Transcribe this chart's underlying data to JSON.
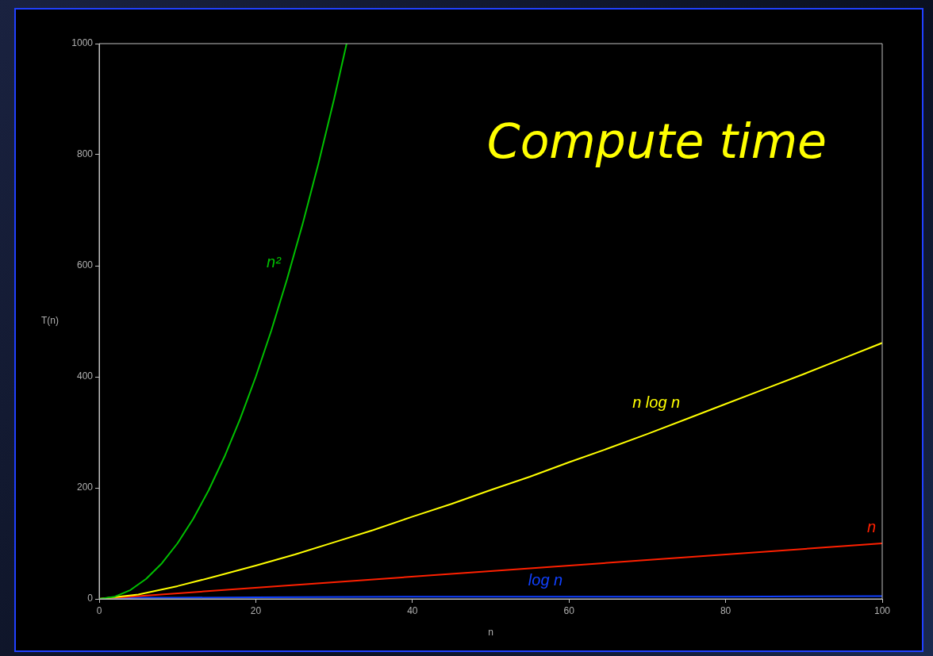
{
  "chart_data": {
    "type": "line",
    "title": "Compute time",
    "xlabel": "n",
    "ylabel": "T(n)",
    "xlim": [
      0,
      100
    ],
    "ylim": [
      0,
      1000
    ],
    "xticks": [
      0,
      20,
      40,
      60,
      80,
      100
    ],
    "yticks": [
      0,
      200,
      400,
      600,
      800,
      1000
    ],
    "grid": false,
    "legend": false,
    "marker": "none",
    "line_style": "solid",
    "series": [
      {
        "name": "n²",
        "color": "#00c000",
        "x": [
          0,
          2,
          4,
          6,
          8,
          10,
          12,
          14,
          16,
          18,
          20,
          22,
          24,
          26,
          28,
          30,
          31.6
        ],
        "values": [
          0,
          4,
          16,
          36,
          64,
          100,
          144,
          196,
          256,
          324,
          400,
          484,
          576,
          676,
          784,
          900,
          1000
        ]
      },
      {
        "name": "n log n",
        "color": "#ffff00",
        "x": [
          0,
          5,
          10,
          15,
          20,
          25,
          30,
          35,
          40,
          45,
          50,
          55,
          60,
          65,
          70,
          75,
          80,
          85,
          90,
          95,
          100
        ],
        "values": [
          0,
          8,
          23,
          41,
          60,
          80,
          102,
          124,
          148,
          171,
          196,
          220,
          246,
          271,
          297,
          324,
          351,
          378,
          405,
          433,
          461
        ]
      },
      {
        "name": "n",
        "color": "#ff2000",
        "x": [
          0,
          100
        ],
        "values": [
          0,
          100
        ]
      },
      {
        "name": "log n",
        "color": "#1040ff",
        "x": [
          1,
          5,
          10,
          20,
          40,
          60,
          80,
          100
        ],
        "values": [
          0,
          2,
          2,
          3,
          4,
          4,
          4,
          5
        ]
      }
    ]
  }
}
